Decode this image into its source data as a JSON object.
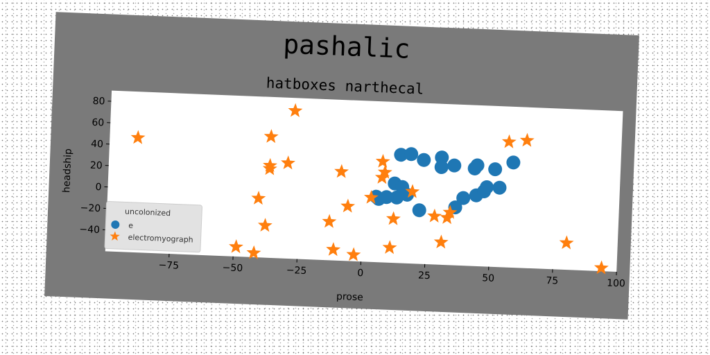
{
  "chart_data": {
    "type": "scatter",
    "title": "pashalic",
    "subtitle": "hatboxes narthecal",
    "xlabel": "prose",
    "ylabel": "headship",
    "xlim": [
      -100,
      100
    ],
    "ylim": [
      -60,
      90
    ],
    "xticks": [
      -75,
      -50,
      -25,
      0,
      25,
      50,
      75,
      100
    ],
    "yticks": [
      -40,
      -20,
      0,
      20,
      40,
      60,
      80
    ],
    "xtick_labels": [
      "−75",
      "−50",
      "−25",
      "0",
      "25",
      "50",
      "75",
      "100"
    ],
    "ytick_labels": [
      "−40",
      "−20",
      "0",
      "20",
      "40",
      "60",
      "80"
    ],
    "grid": false,
    "legend": {
      "title": "uncolonized",
      "placement": "lower-left"
    },
    "series": [
      {
        "name": "e",
        "marker": "circle",
        "color": "#1f77b4",
        "points": [
          [
            14,
            41
          ],
          [
            18,
            42
          ],
          [
            23,
            37
          ],
          [
            30,
            40
          ],
          [
            30,
            31
          ],
          [
            35,
            33
          ],
          [
            43,
            31
          ],
          [
            44,
            34
          ],
          [
            51,
            31
          ],
          [
            58,
            38
          ],
          [
            12,
            14
          ],
          [
            15,
            11
          ],
          [
            17,
            4
          ],
          [
            13,
            1
          ],
          [
            9,
            1
          ],
          [
            5,
            1
          ],
          [
            6,
            -1
          ],
          [
            22,
            -10
          ],
          [
            39,
            3
          ],
          [
            44,
            6
          ],
          [
            47,
            10
          ],
          [
            48,
            14
          ],
          [
            53,
            14
          ],
          [
            36,
            -6
          ]
        ]
      },
      {
        "name": "electromyograph",
        "marker": "star",
        "color": "#ff7f0e",
        "points": [
          [
            -89,
            47
          ],
          [
            -28,
            78
          ],
          [
            -37,
            53
          ],
          [
            -37,
            26
          ],
          [
            -30,
            29
          ],
          [
            -37,
            23
          ],
          [
            -9,
            23
          ],
          [
            -41,
            -5
          ],
          [
            -38,
            -30
          ],
          [
            -13,
            -24
          ],
          [
            -6,
            -9
          ],
          [
            -49,
            -51
          ],
          [
            -42,
            -56
          ],
          [
            -11,
            -50
          ],
          [
            -3,
            -54
          ],
          [
            7,
            34
          ],
          [
            8,
            24
          ],
          [
            7,
            19
          ],
          [
            3,
            0
          ],
          [
            19,
            7
          ],
          [
            12,
            -19
          ],
          [
            11,
            -46
          ],
          [
            28,
            -15
          ],
          [
            31,
            -39
          ],
          [
            33,
            -16
          ],
          [
            34,
            -11
          ],
          [
            56,
            57
          ],
          [
            63,
            59
          ],
          [
            80,
            -35
          ],
          [
            94,
            -57
          ]
        ]
      }
    ]
  }
}
